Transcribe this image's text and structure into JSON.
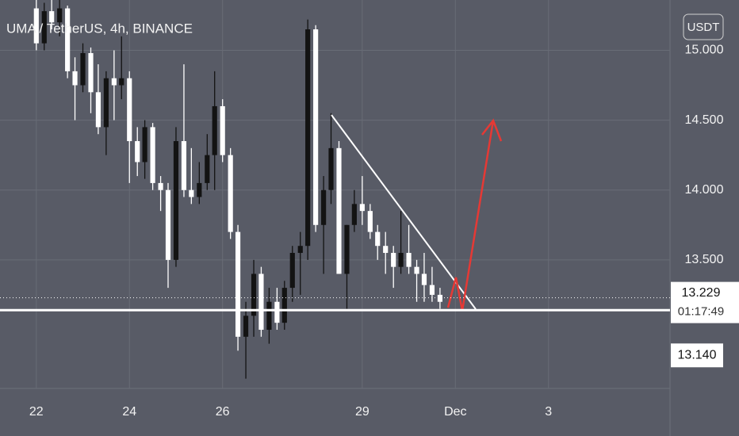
{
  "chart_data": {
    "type": "candlestick",
    "title": "UMA / TetherUS, 4h, BINANCE",
    "currency": "USDT",
    "x": [
      22,
      22.17,
      22.33,
      22.5,
      22.67,
      22.83,
      23,
      23.17,
      23.33,
      23.5,
      23.67,
      23.83,
      24,
      24.17,
      24.33,
      24.5,
      24.67,
      24.83,
      25,
      25.17,
      25.33,
      25.5,
      25.67,
      25.83,
      26,
      26.17,
      26.33,
      26.5,
      26.67,
      26.83,
      27,
      27.17,
      27.33,
      27.5,
      27.67,
      27.83,
      28,
      28.17,
      28.33,
      28.5,
      28.67,
      28.83,
      29,
      29.17,
      29.33,
      29.5,
      29.67,
      29.83,
      30,
      30.17,
      30.33,
      30.5,
      30.67
    ],
    "open": [
      15.3,
      15.05,
      15.28,
      15.2,
      15.3,
      14.85,
      14.75,
      14.98,
      14.7,
      14.45,
      14.8,
      14.75,
      14.8,
      14.35,
      14.2,
      14.45,
      14.05,
      14.0,
      13.5,
      14.35,
      14.0,
      13.95,
      14.05,
      14.25,
      14.6,
      14.25,
      13.7,
      12.95,
      13.1,
      13.4,
      13.0,
      13.2,
      13.05,
      13.3,
      13.55,
      13.6,
      15.15,
      13.75,
      14.0,
      14.3,
      13.4,
      13.75,
      13.9,
      13.85,
      13.7,
      13.6,
      13.55,
      13.45,
      13.55,
      13.45,
      13.4,
      13.32,
      13.25
    ],
    "high": [
      15.36,
      15.34,
      15.36,
      15.36,
      15.32,
      14.95,
      15.05,
      15.02,
      14.9,
      14.85,
      15.0,
      15.1,
      14.85,
      14.45,
      14.5,
      14.48,
      14.1,
      14.05,
      14.45,
      14.9,
      14.3,
      14.2,
      14.4,
      14.85,
      14.65,
      14.3,
      13.75,
      13.2,
      13.5,
      13.45,
      13.3,
      13.3,
      13.35,
      13.6,
      13.7,
      15.22,
      15.18,
      14.1,
      14.55,
      14.35,
      13.75,
      14.0,
      14.1,
      13.9,
      13.75,
      13.7,
      13.6,
      13.85,
      13.75,
      13.5,
      13.55,
      13.45,
      13.3
    ],
    "low": [
      15.0,
      15.0,
      15.15,
      15.1,
      14.8,
      14.5,
      14.7,
      14.55,
      14.4,
      14.25,
      14.5,
      14.65,
      14.05,
      14.1,
      14.08,
      14.0,
      13.85,
      13.3,
      13.45,
      13.95,
      13.9,
      13.9,
      14.0,
      14.0,
      14.2,
      13.65,
      12.85,
      12.65,
      12.95,
      12.95,
      12.9,
      13.0,
      13.0,
      13.2,
      13.25,
      13.5,
      13.7,
      13.4,
      13.9,
      13.4,
      13.15,
      13.7,
      13.75,
      13.65,
      13.5,
      13.4,
      13.3,
      13.4,
      13.4,
      13.2,
      13.2,
      13.2,
      13.15
    ],
    "close": [
      15.05,
      15.28,
      15.2,
      15.3,
      14.85,
      14.75,
      14.98,
      14.7,
      14.45,
      14.8,
      14.75,
      14.8,
      14.35,
      14.2,
      14.45,
      14.05,
      14.0,
      13.5,
      14.35,
      14.0,
      13.95,
      14.05,
      14.25,
      14.6,
      14.25,
      13.7,
      12.95,
      13.1,
      13.4,
      13.0,
      13.2,
      13.05,
      13.3,
      13.55,
      13.6,
      15.15,
      13.75,
      14.0,
      14.3,
      13.4,
      13.75,
      13.9,
      13.85,
      13.7,
      13.6,
      13.55,
      13.45,
      13.55,
      13.45,
      13.4,
      13.32,
      13.25,
      13.2
    ],
    "up_color": "#131313",
    "down_color": "#ffffff",
    "xlim": [
      21.22,
      35.61
    ],
    "ylim": [
      12.58,
      15.36
    ],
    "xticks": [
      22,
      24,
      26,
      29,
      {
        "value": 31,
        "label": "Dec"
      },
      {
        "value": 33,
        "label": "3"
      }
    ],
    "yticks": [
      {
        "value": 13.5,
        "label": "13.500"
      },
      {
        "value": 14,
        "label": "14.000"
      },
      {
        "value": 14.5,
        "label": "14.500"
      },
      {
        "value": 15,
        "label": "15.000"
      }
    ],
    "grid": true,
    "last_price": {
      "value": 13.229,
      "label": "13.229",
      "countdown": "01:17:49"
    },
    "level": {
      "value": 13.14,
      "label": "13.140"
    }
  }
}
